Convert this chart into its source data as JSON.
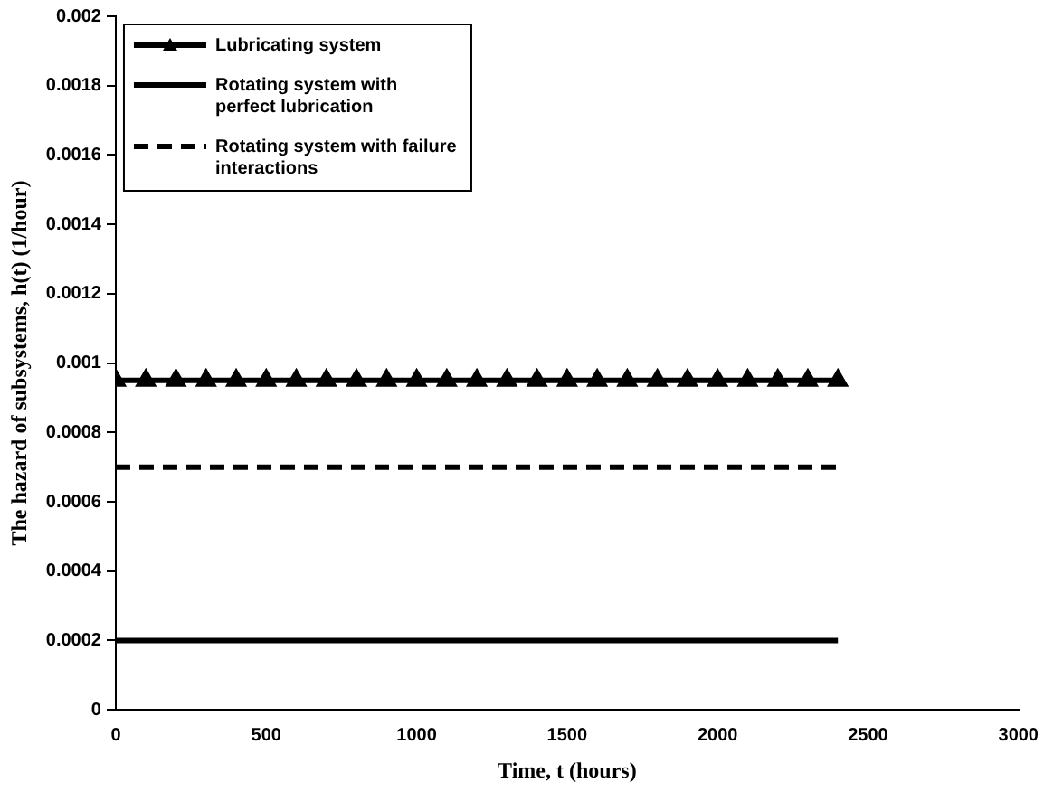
{
  "chart_data": {
    "type": "line",
    "xlabel": "Time, t (hours)",
    "ylabel": "The hazard of subsystems, h(t) (1/hour)",
    "xlim": [
      0,
      3000
    ],
    "xticks": [
      0,
      500,
      1000,
      1500,
      2000,
      2500,
      3000
    ],
    "ylim": [
      0,
      0.002
    ],
    "yticks": [
      0,
      0.0002,
      0.0004,
      0.0006,
      0.0008,
      0.001,
      0.0012,
      0.0014,
      0.0016,
      0.0018,
      0.002
    ],
    "grid": false,
    "legend": "top left",
    "series": [
      {
        "name": "Lubricating system",
        "color": "#000000",
        "marker": "triangle",
        "line_style": "solid",
        "x": [
          0,
          100,
          200,
          300,
          400,
          500,
          600,
          700,
          800,
          900,
          1000,
          1100,
          1200,
          1300,
          1400,
          1500,
          1600,
          1700,
          1800,
          1900,
          2000,
          2100,
          2200,
          2300,
          2400
        ],
        "values": [
          0.00095,
          0.00095,
          0.00095,
          0.00095,
          0.00095,
          0.00095,
          0.00095,
          0.00095,
          0.00095,
          0.00095,
          0.00095,
          0.00095,
          0.00095,
          0.00095,
          0.00095,
          0.00095,
          0.00095,
          0.00095,
          0.00095,
          0.00095,
          0.00095,
          0.00095,
          0.00095,
          0.00095,
          0.00095
        ]
      },
      {
        "name": "Rotating system with perfect lubrication",
        "color": "#000000",
        "marker": "none",
        "line_style": "solid",
        "x": [
          0,
          2400
        ],
        "values": [
          0.0002,
          0.0002
        ]
      },
      {
        "name": "Rotating system with failure interactions",
        "color": "#000000",
        "marker": "none",
        "line_style": "dashed",
        "x": [
          0,
          2400
        ],
        "values": [
          0.0007,
          0.0007
        ]
      }
    ]
  }
}
